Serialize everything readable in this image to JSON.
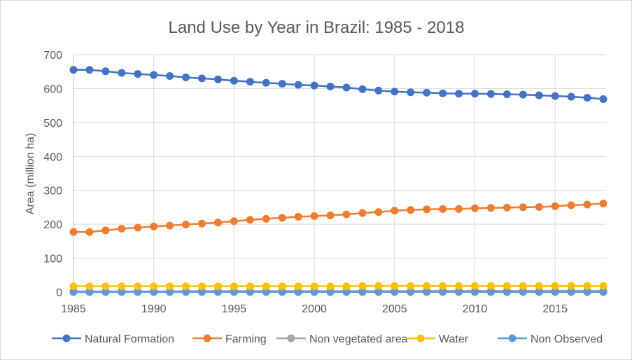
{
  "chart_data": {
    "type": "line",
    "title": "Land Use by Year in Brazil: 1985 - 2018",
    "xlabel": "",
    "ylabel": "Area (million ha)",
    "ylim": [
      0,
      700
    ],
    "yticks": [
      0,
      100,
      200,
      300,
      400,
      500,
      600,
      700
    ],
    "xticks": [
      1985,
      1990,
      1995,
      2000,
      2005,
      2010,
      2015
    ],
    "grid": true,
    "legend": "bottom",
    "x": [
      1985,
      1986,
      1987,
      1988,
      1989,
      1990,
      1991,
      1992,
      1993,
      1994,
      1995,
      1996,
      1997,
      1998,
      1999,
      2000,
      2001,
      2002,
      2003,
      2004,
      2005,
      2006,
      2007,
      2008,
      2009,
      2010,
      2011,
      2012,
      2013,
      2014,
      2015,
      2016,
      2017,
      2018
    ],
    "series": [
      {
        "name": "Natural Formation",
        "color": "#4472C4",
        "values": [
          655,
          655,
          651,
          646,
          643,
          640,
          637,
          633,
          630,
          627,
          623,
          620,
          617,
          614,
          611,
          609,
          606,
          603,
          598,
          594,
          591,
          589,
          588,
          586,
          585,
          585,
          584,
          583,
          582,
          580,
          578,
          576,
          573,
          569
        ]
      },
      {
        "name": "Farming",
        "color": "#ED7D31",
        "values": [
          177,
          177,
          182,
          187,
          190,
          193,
          196,
          199,
          202,
          205,
          209,
          213,
          216,
          219,
          222,
          224,
          226,
          229,
          233,
          236,
          240,
          242,
          244,
          245,
          245,
          247,
          248,
          249,
          250,
          251,
          253,
          256,
          258,
          261
        ]
      },
      {
        "name": "Non vegetated area",
        "color": "#A5A5A5",
        "values": [
          2,
          2,
          2,
          2,
          2,
          2,
          2,
          3,
          3,
          3,
          3,
          3,
          3,
          3,
          3,
          3,
          3,
          3,
          3,
          3,
          3,
          3,
          4,
          4,
          4,
          4,
          4,
          4,
          4,
          4,
          4,
          4,
          4,
          4
        ]
      },
      {
        "name": "Water",
        "color": "#FFC000",
        "values": [
          17,
          17,
          17,
          17,
          17,
          17,
          17,
          17,
          17,
          17,
          17,
          17,
          17,
          17,
          17,
          17,
          17,
          17,
          18,
          18,
          18,
          18,
          18,
          18,
          18,
          18,
          18,
          18,
          18,
          18,
          18,
          18,
          18,
          18
        ]
      },
      {
        "name": "Non Observed",
        "color": "#5B9BD5",
        "values": [
          0,
          0,
          0,
          0,
          0,
          0,
          0,
          0,
          0,
          0,
          0,
          0,
          0,
          0,
          0,
          0,
          0,
          0,
          0,
          0,
          0,
          0,
          0,
          0,
          0,
          0,
          0,
          0,
          0,
          0,
          0,
          0,
          0,
          0
        ]
      }
    ]
  }
}
